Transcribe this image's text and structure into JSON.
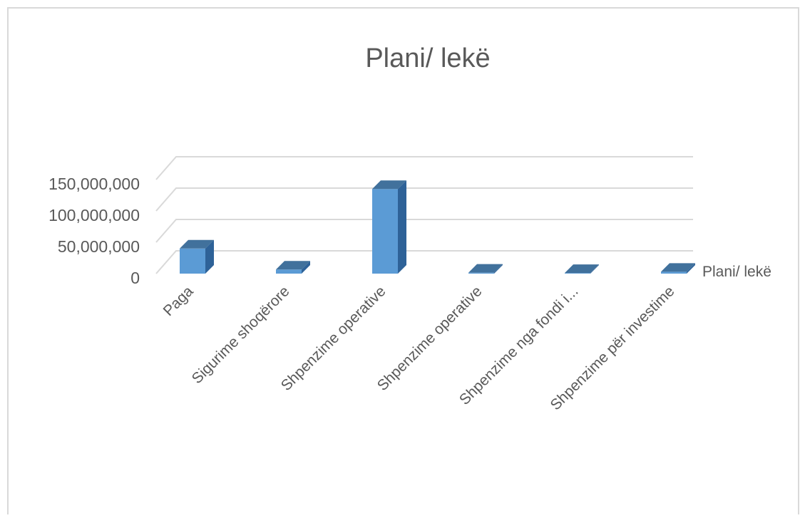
{
  "chart_data": {
    "type": "bar",
    "title": "Plani/ lekë",
    "categories": [
      "Paga",
      "Sigurime shoqërore",
      "Shpenzime operative",
      "Shpenzime operative",
      "Shpenzime nga fondi i...",
      "Shpenzime për investime"
    ],
    "series": [
      {
        "name": "Plani/ lekë",
        "values": [
          40000000,
          6500000,
          135000000,
          1500000,
          1000000,
          3000000
        ]
      }
    ],
    "y_ticks": [
      "0",
      "50,000,000",
      "100,000,000",
      "150,000,000"
    ],
    "ylim": [
      0,
      150000000
    ],
    "xlabel": "",
    "ylabel": "",
    "grid": true,
    "legend_position": "right",
    "bar_color": "#5b9bd5"
  }
}
